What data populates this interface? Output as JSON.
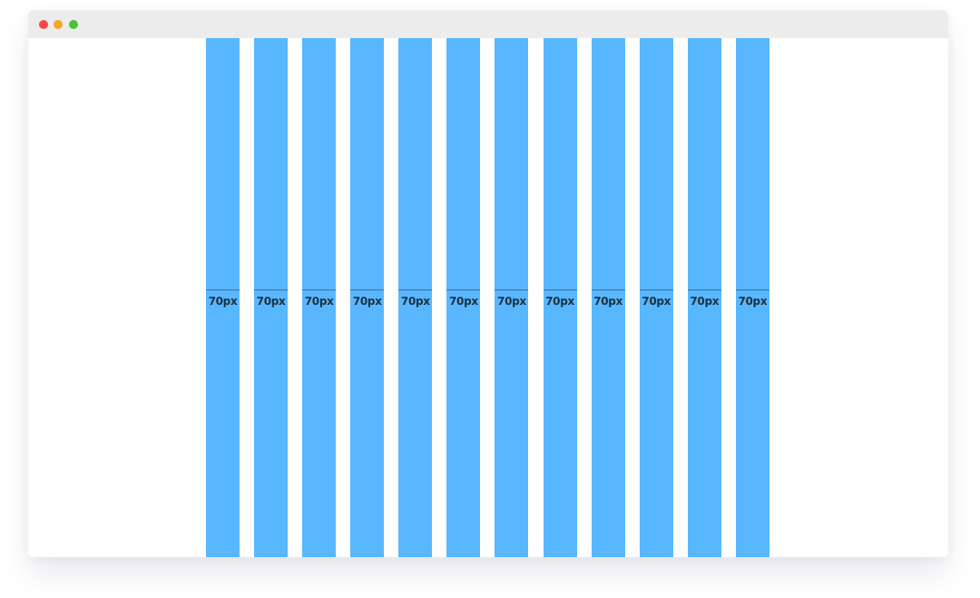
{
  "window": {
    "controls": [
      {
        "name": "close-dot",
        "color": "#ef4a4a"
      },
      {
        "name": "minimize-dot",
        "color": "#f5a623"
      },
      {
        "name": "maximize-dot",
        "color": "#4cc13a"
      }
    ]
  },
  "grid": {
    "column_color": "#58b7ff",
    "columns": [
      {
        "label": "70px"
      },
      {
        "label": "70px"
      },
      {
        "label": "70px"
      },
      {
        "label": "70px"
      },
      {
        "label": "70px"
      },
      {
        "label": "70px"
      },
      {
        "label": "70px"
      },
      {
        "label": "70px"
      },
      {
        "label": "70px"
      },
      {
        "label": "70px"
      },
      {
        "label": "70px"
      },
      {
        "label": "70px"
      }
    ]
  }
}
